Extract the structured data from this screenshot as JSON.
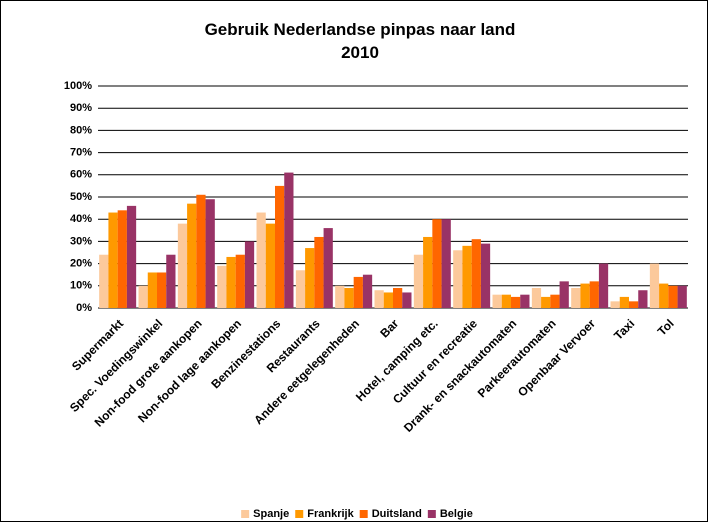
{
  "chart_data": {
    "type": "bar",
    "title": "Gebruik Nederlandse pinpas naar land",
    "subtitle": "2010",
    "categories": [
      "Supermarkt",
      "Spec. Voedingswinkel",
      "Non-food grote aankopen",
      "Non-food lage aankopen",
      "Benzinestations",
      "Restaurants",
      "Andere eetgelegenheden",
      "Bar",
      "Hotel, camping etc.",
      "Cultuur en recreatie",
      "Drank- en snackautomaten",
      "Parkeerautomaten",
      "Openbaar Vervoer",
      "Taxi",
      "Tol"
    ],
    "series": [
      {
        "name": "Spanje",
        "color": "#fcc99b",
        "values": [
          24,
          10,
          38,
          19,
          43,
          17,
          10,
          8,
          24,
          26,
          6,
          9,
          9,
          3,
          20
        ]
      },
      {
        "name": "Frankrijk",
        "color": "#ff9900",
        "values": [
          43,
          16,
          47,
          23,
          38,
          27,
          9,
          7,
          32,
          28,
          6,
          5,
          11,
          5,
          11
        ]
      },
      {
        "name": "Duitsland",
        "color": "#ff6600",
        "values": [
          44,
          16,
          51,
          24,
          55,
          32,
          14,
          9,
          40,
          31,
          5,
          6,
          12,
          3,
          10
        ]
      },
      {
        "name": "Belgie",
        "color": "#993366",
        "values": [
          46,
          24,
          49,
          30,
          61,
          36,
          15,
          7,
          40,
          29,
          6,
          12,
          20,
          8,
          10
        ]
      }
    ],
    "ylim": [
      0,
      100
    ],
    "yticks": [
      {
        "value": 0,
        "label": "0%"
      },
      {
        "value": 10,
        "label": "10%"
      },
      {
        "value": 20,
        "label": "20%"
      },
      {
        "value": 30,
        "label": "30%"
      },
      {
        "value": 40,
        "label": "40%"
      },
      {
        "value": 50,
        "label": "50%"
      },
      {
        "value": 60,
        "label": "60%"
      },
      {
        "value": 70,
        "label": "70%"
      },
      {
        "value": 80,
        "label": "80%"
      },
      {
        "value": 90,
        "label": "90%"
      },
      {
        "value": 100,
        "label": "100%"
      }
    ],
    "grid": true,
    "legend": "bottom"
  }
}
